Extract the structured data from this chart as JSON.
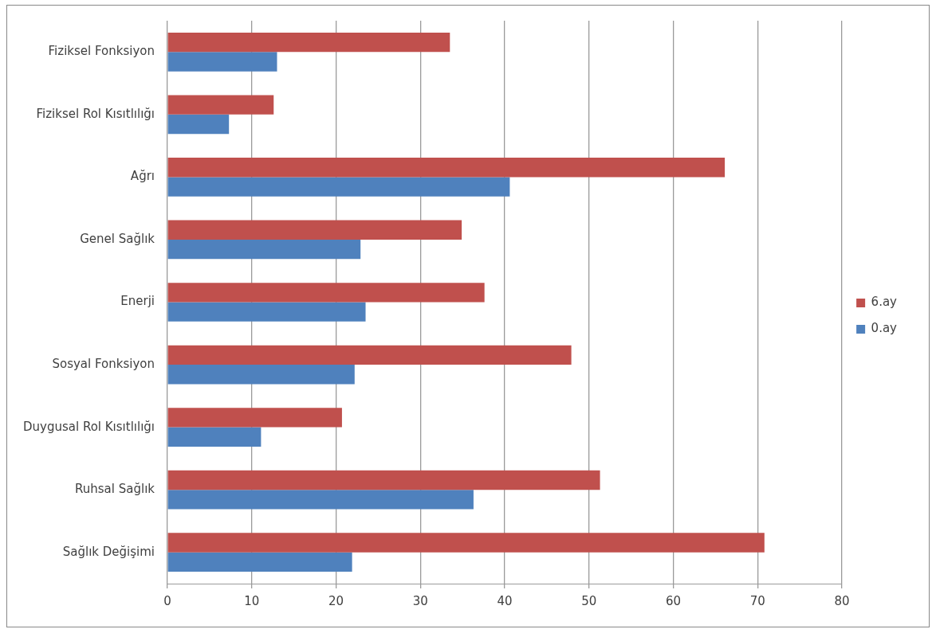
{
  "chart_data": {
    "type": "bar",
    "orientation": "horizontal",
    "categories": [
      "Fiziksel Fonksiyon",
      "Fiziksel Rol Kısıtlılığı",
      "Ağrı",
      "Genel Sağlık",
      "Enerji",
      "Sosyal Fonksiyon",
      "Duygusal Rol Kısıtlılığı",
      "Ruhsal Sağlık",
      "Sağlık Değişimi"
    ],
    "series": [
      {
        "name": "6.ay",
        "color": "#c0504d",
        "values": [
          33.5,
          12.6,
          66.1,
          34.9,
          37.6,
          47.9,
          20.7,
          51.3,
          70.8
        ]
      },
      {
        "name": "0.ay",
        "color": "#4f81bd",
        "values": [
          13.0,
          7.3,
          40.6,
          22.9,
          23.5,
          22.2,
          11.1,
          36.3,
          21.9
        ]
      }
    ],
    "xlim": [
      0,
      80
    ],
    "xticks": [
      0,
      10,
      20,
      30,
      40,
      50,
      60,
      70,
      80
    ],
    "grid": "x",
    "legend": "right"
  }
}
